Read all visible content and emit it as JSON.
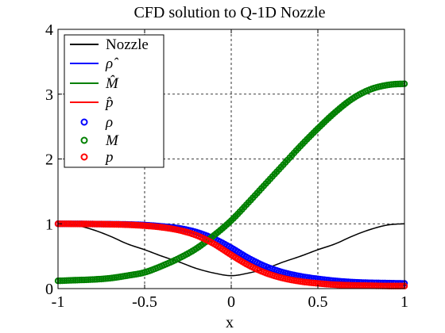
{
  "chart_data": {
    "type": "line",
    "title": "CFD solution to Q-1D Nozzle",
    "xlabel": "x",
    "ylabel": "",
    "xlim": [
      -1,
      1
    ],
    "ylim": [
      0,
      4
    ],
    "xticks": [
      "-1",
      "-0.5",
      "0",
      "0.5",
      "1"
    ],
    "yticks": [
      "0",
      "1",
      "2",
      "3",
      "4"
    ],
    "grid": true,
    "legend_position": "top-left",
    "x_grid": [
      -1.0,
      -0.9,
      -0.8,
      -0.7,
      -0.6,
      -0.5,
      -0.4,
      -0.3,
      -0.2,
      -0.1,
      0.0,
      0.1,
      0.2,
      0.3,
      0.4,
      0.5,
      0.6,
      0.7,
      0.8,
      0.9,
      1.0
    ],
    "series": [
      {
        "name": "Nozzle",
        "style": "line",
        "color": "#000000",
        "values": [
          1.0,
          0.98,
          0.91,
          0.81,
          0.69,
          0.6,
          0.5,
          0.41,
          0.31,
          0.24,
          0.2,
          0.24,
          0.31,
          0.41,
          0.5,
          0.6,
          0.69,
          0.81,
          0.91,
          0.98,
          1.0
        ]
      },
      {
        "name": "ρ̂",
        "style": "line",
        "color": "#0000ff",
        "values": [
          1.0,
          0.999,
          0.997,
          0.994,
          0.99,
          0.98,
          0.96,
          0.93,
          0.87,
          0.77,
          0.63,
          0.47,
          0.34,
          0.25,
          0.19,
          0.15,
          0.12,
          0.1,
          0.09,
          0.085,
          0.08
        ]
      },
      {
        "name": "M̂",
        "style": "line",
        "color": "#008000",
        "values": [
          0.12,
          0.13,
          0.14,
          0.16,
          0.2,
          0.25,
          0.35,
          0.47,
          0.62,
          0.82,
          1.05,
          1.33,
          1.62,
          1.91,
          2.2,
          2.47,
          2.72,
          2.93,
          3.07,
          3.14,
          3.16
        ]
      },
      {
        "name": "p̂",
        "style": "line",
        "color": "#ff0000",
        "values": [
          1.0,
          0.998,
          0.996,
          0.992,
          0.985,
          0.97,
          0.945,
          0.9,
          0.82,
          0.69,
          0.52,
          0.36,
          0.24,
          0.16,
          0.11,
          0.08,
          0.06,
          0.05,
          0.045,
          0.04,
          0.04
        ]
      },
      {
        "name": "ρ",
        "style": "markers",
        "color": "#0000ff",
        "source": "ρ̂"
      },
      {
        "name": "M",
        "style": "markers",
        "color": "#008000",
        "source": "M̂"
      },
      {
        "name": "p",
        "style": "markers",
        "color": "#ff0000",
        "source": "p̂"
      }
    ]
  }
}
